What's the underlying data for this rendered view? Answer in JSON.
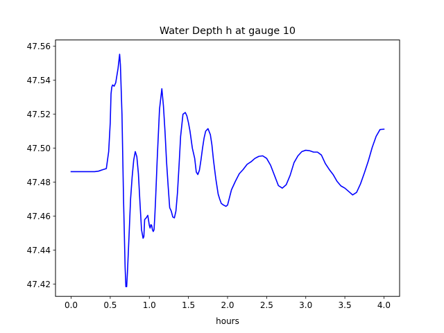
{
  "chart_data": {
    "type": "line",
    "title": "Water Depth h at gauge 10",
    "xlabel": "hours",
    "ylabel": "",
    "xlim": [
      -0.2,
      4.2
    ],
    "ylim": [
      47.4128,
      47.5637
    ],
    "xticks": [
      0.0,
      0.5,
      1.0,
      1.5,
      2.0,
      2.5,
      3.0,
      3.5,
      4.0
    ],
    "xtick_labels": [
      "0.0",
      "0.5",
      "1.0",
      "1.5",
      "2.0",
      "2.5",
      "3.0",
      "3.5",
      "4.0"
    ],
    "yticks": [
      47.42,
      47.44,
      47.46,
      47.48,
      47.5,
      47.52,
      47.54,
      47.56
    ],
    "ytick_labels": [
      "47.42",
      "47.44",
      "47.46",
      "47.48",
      "47.50",
      "47.52",
      "47.54",
      "47.56"
    ],
    "grid": false,
    "series": [
      {
        "color": "#0000ff",
        "x": [
          0.0,
          0.1,
          0.2,
          0.3,
          0.35,
          0.4,
          0.45,
          0.48,
          0.5,
          0.51,
          0.52,
          0.53,
          0.55,
          0.57,
          0.6,
          0.62,
          0.63,
          0.65,
          0.67,
          0.69,
          0.7,
          0.71,
          0.72,
          0.74,
          0.76,
          0.78,
          0.8,
          0.82,
          0.84,
          0.86,
          0.88,
          0.9,
          0.92,
          0.93,
          0.94,
          0.96,
          0.98,
          1.0,
          1.01,
          1.02,
          1.03,
          1.04,
          1.05,
          1.06,
          1.07,
          1.08,
          1.1,
          1.13,
          1.16,
          1.18,
          1.2,
          1.22,
          1.24,
          1.26,
          1.28,
          1.3,
          1.32,
          1.34,
          1.36,
          1.38,
          1.4,
          1.43,
          1.46,
          1.48,
          1.5,
          1.52,
          1.55,
          1.58,
          1.6,
          1.62,
          1.64,
          1.66,
          1.68,
          1.7,
          1.72,
          1.75,
          1.78,
          1.8,
          1.82,
          1.85,
          1.88,
          1.9,
          1.92,
          1.95,
          1.98,
          2.0,
          2.05,
          2.1,
          2.15,
          2.2,
          2.25,
          2.3,
          2.35,
          2.4,
          2.45,
          2.5,
          2.55,
          2.6,
          2.65,
          2.7,
          2.75,
          2.8,
          2.85,
          2.9,
          2.95,
          3.0,
          3.05,
          3.1,
          3.15,
          3.2,
          3.25,
          3.3,
          3.35,
          3.4,
          3.45,
          3.5,
          3.55,
          3.6,
          3.65,
          3.7,
          3.75,
          3.8,
          3.85,
          3.9,
          3.95,
          4.0
        ],
        "y": [
          47.4862,
          47.4862,
          47.4862,
          47.4862,
          47.4865,
          47.4873,
          47.488,
          47.498,
          47.515,
          47.532,
          47.536,
          47.5372,
          47.5365,
          47.5385,
          47.547,
          47.5553,
          47.549,
          47.52,
          47.47,
          47.43,
          47.4185,
          47.4185,
          47.427,
          47.448,
          47.47,
          47.483,
          47.493,
          47.498,
          47.495,
          47.485,
          47.468,
          47.452,
          47.447,
          47.448,
          47.458,
          47.459,
          47.4605,
          47.4545,
          47.453,
          47.455,
          47.4545,
          47.452,
          47.451,
          47.452,
          47.46,
          47.47,
          47.493,
          47.523,
          47.535,
          47.525,
          47.51,
          47.492,
          47.478,
          47.465,
          47.463,
          47.4595,
          47.459,
          47.463,
          47.474,
          47.49,
          47.507,
          47.52,
          47.521,
          47.519,
          47.515,
          47.51,
          47.5,
          47.494,
          47.486,
          47.4845,
          47.487,
          47.493,
          47.5,
          47.506,
          47.51,
          47.5115,
          47.508,
          47.502,
          47.493,
          47.482,
          47.473,
          47.47,
          47.4675,
          47.4665,
          47.4658,
          47.4665,
          47.4755,
          47.4805,
          47.485,
          47.4875,
          47.4905,
          47.492,
          47.494,
          47.4952,
          47.4955,
          47.494,
          47.49,
          47.484,
          47.478,
          47.4765,
          47.4785,
          47.484,
          47.4915,
          47.4955,
          47.498,
          47.4988,
          47.4985,
          47.4977,
          47.4977,
          47.496,
          47.491,
          47.4875,
          47.4845,
          47.4805,
          47.4778,
          47.4765,
          47.4745,
          47.4725,
          47.474,
          47.479,
          47.4855,
          47.4925,
          47.5005,
          47.507,
          47.511,
          47.5112
        ]
      }
    ]
  }
}
